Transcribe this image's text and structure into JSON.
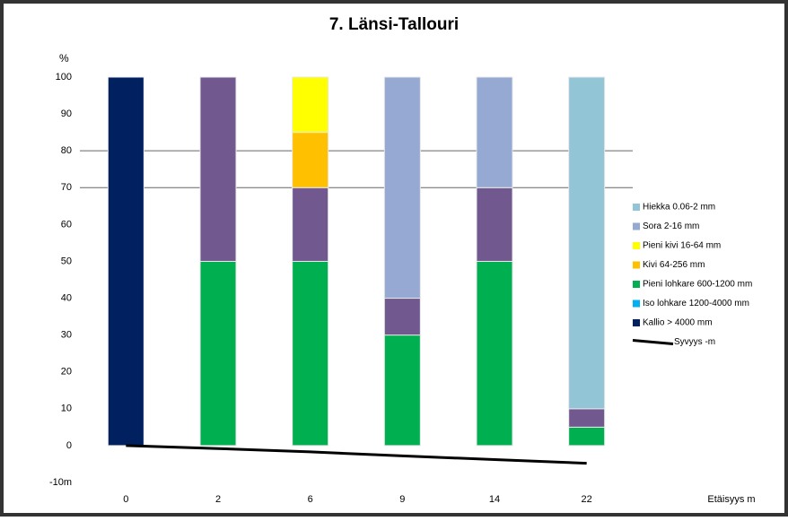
{
  "chart_data": {
    "type": "stacked-bar",
    "title": "7. Länsi-Tallouri",
    "y_label": "%",
    "x_label": "Etäisyys m",
    "categories": [
      "0",
      "2",
      "6",
      "9",
      "14",
      "22"
    ],
    "series": [
      {
        "name": "Kallio > 4000 mm",
        "color": "#002060",
        "values": [
          100,
          0,
          0,
          0,
          0,
          0
        ]
      },
      {
        "name": "Iso lohkare 1200-4000 mm",
        "color": "#00b0f0",
        "values": [
          0,
          0,
          0,
          0,
          0,
          0
        ]
      },
      {
        "name": "Pieni lohkare 600-1200 mm",
        "color": "#00b050",
        "values": [
          0,
          50,
          50,
          30,
          50,
          5
        ]
      },
      {
        "color": "#71588f",
        "values": [
          0,
          50,
          20,
          10,
          20,
          5
        ]
      },
      {
        "name": "Kivi 64-256 mm",
        "color": "#ffc000",
        "values": [
          0,
          0,
          15,
          0,
          0,
          0
        ]
      },
      {
        "name": "Pieni kivi 16-64 mm",
        "color": "#ffff00",
        "values": [
          0,
          0,
          15,
          0,
          0,
          0
        ]
      },
      {
        "name": "Sora 2-16 mm",
        "color": "#95a9d2",
        "values": [
          0,
          0,
          0,
          60,
          30,
          0
        ]
      },
      {
        "name": "Hiekka 0.06-2 mm",
        "color": "#92c5d6",
        "values": [
          0,
          0,
          0,
          0,
          0,
          90
        ]
      }
    ],
    "depth": {
      "name": "Syvyys -m",
      "color": "#000000",
      "values": [
        0,
        -0.8,
        -1.7,
        -2.8,
        -3.8,
        -4.8
      ]
    },
    "ylim": [
      -10,
      100
    ],
    "yticks": [
      {
        "value": -10,
        "label": "-10m"
      },
      0,
      10,
      20,
      30,
      40,
      50,
      60,
      70,
      80,
      90,
      100
    ],
    "gridlines": [
      70,
      80
    ]
  }
}
